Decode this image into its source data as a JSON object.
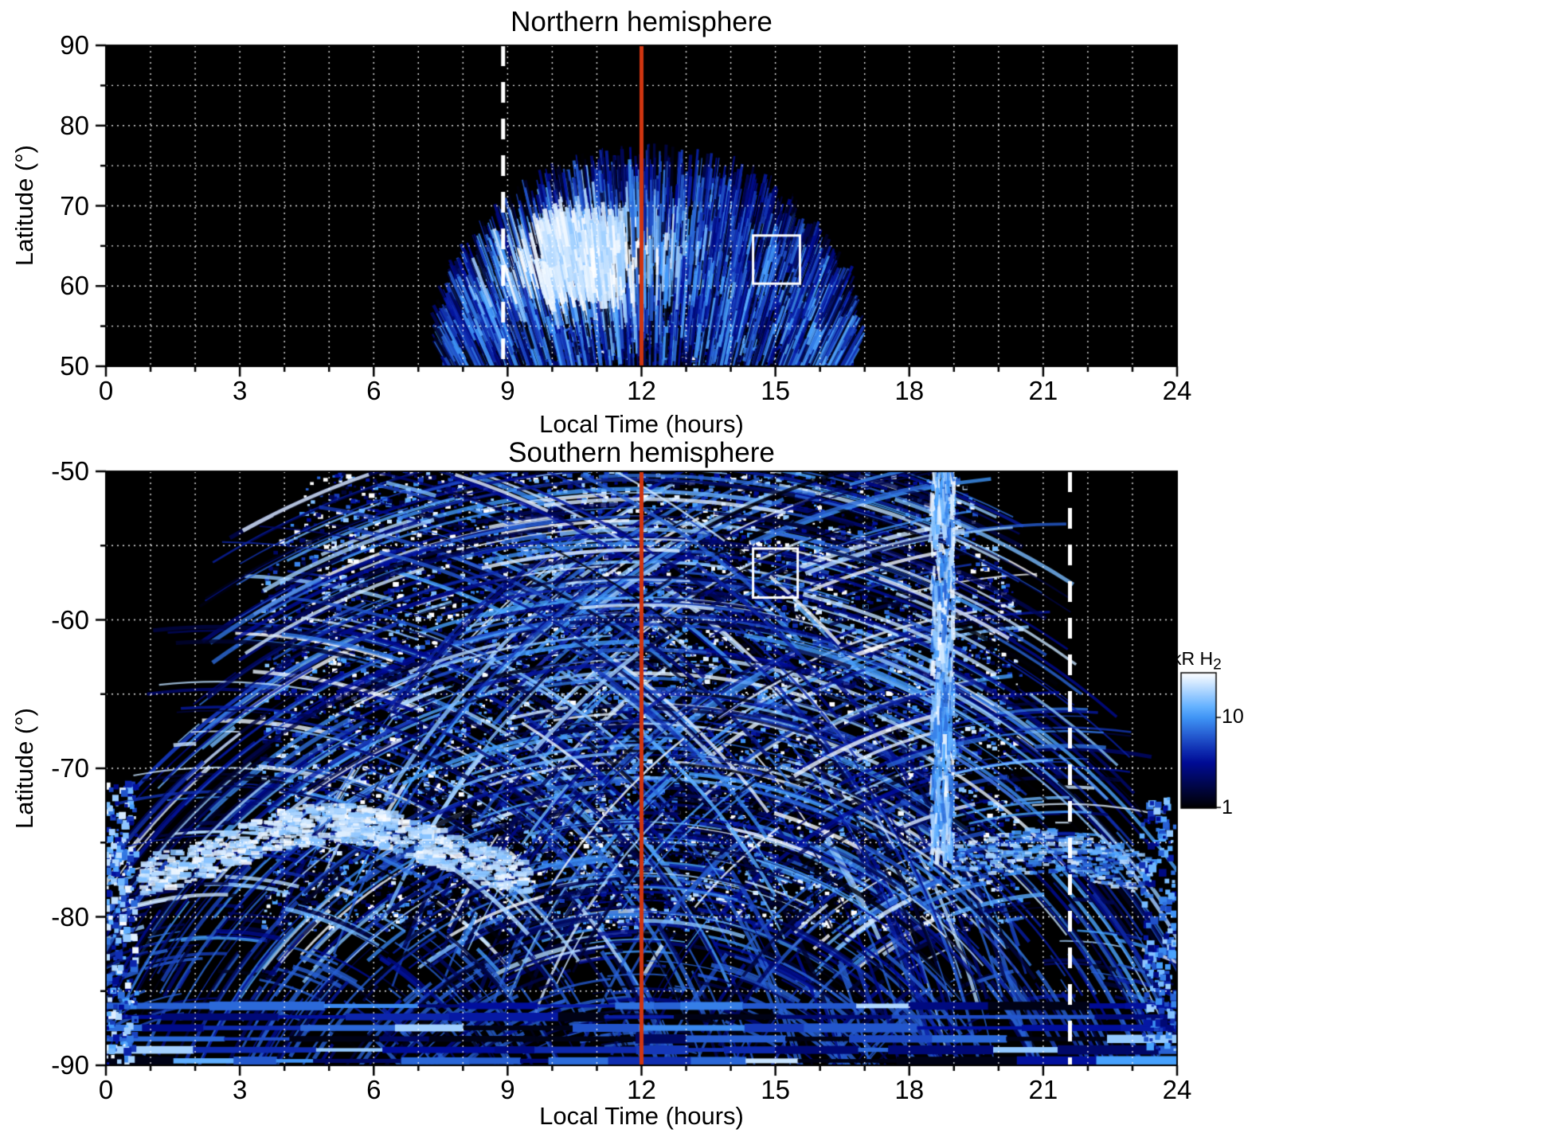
{
  "figure": {
    "background": "#ffffff",
    "panels_count": 2
  },
  "chart_data": [
    {
      "type": "heatmap",
      "title": "Northern hemisphere",
      "xlabel": "Local Time (hours)",
      "ylabel": "Latitude (°)",
      "xlim": [
        0,
        24
      ],
      "ylim": [
        50,
        90
      ],
      "xticks": [
        0,
        3,
        6,
        9,
        12,
        15,
        18,
        21,
        24
      ],
      "yticks": [
        90,
        80,
        70,
        60,
        50
      ],
      "x_minor_step_hours": 1,
      "y_minor_step_deg": 5,
      "grid": {
        "show": true,
        "style": "dotted",
        "color": "#ffffff",
        "x_step_hours": 1,
        "y_step_deg": 5
      },
      "background": "#000000",
      "annotations": {
        "noon_line": {
          "type": "vline",
          "x_hours": 12,
          "color": "#d03510",
          "style": "solid"
        },
        "dashed_line": {
          "type": "vline",
          "x_hours": 8.9,
          "color": "#ffffff",
          "style": "dashed"
        },
        "roi_box": {
          "type": "rect",
          "x_hours": [
            14.5,
            15.55
          ],
          "lat_deg": [
            60.3,
            66.3
          ],
          "color": "#ffffff"
        }
      },
      "emission": {
        "species": "H2",
        "units": "kR",
        "shape": "dayside emission dome centered on local noon, radial streaks",
        "local_time_extent_hours": [
          7.6,
          16.7
        ],
        "latitude_extent_deg": [
          50,
          73.5
        ],
        "brightest_patch": {
          "local_time_hours": [
            9.8,
            11.6
          ],
          "latitude_deg": [
            59,
            68
          ],
          "value_kR": 30
        },
        "typical_value_kR": 8
      }
    },
    {
      "type": "heatmap",
      "title": "Southern hemisphere",
      "xlabel": "Local Time (hours)",
      "ylabel": "Latitude (°)",
      "xlim": [
        0,
        24
      ],
      "ylim": [
        -90,
        -50
      ],
      "xticks": [
        0,
        3,
        6,
        9,
        12,
        15,
        18,
        21,
        24
      ],
      "yticks": [
        -50,
        -60,
        -70,
        -80,
        -90
      ],
      "x_minor_step_hours": 1,
      "y_minor_step_deg": 5,
      "grid": {
        "show": true,
        "style": "dotted",
        "color": "#ffffff",
        "x_step_hours": 1,
        "y_step_deg": 5
      },
      "background": "#000000",
      "annotations": {
        "noon_line": {
          "type": "vline",
          "x_hours": 12,
          "color": "#d03510",
          "style": "solid"
        },
        "dashed_line": {
          "type": "vline",
          "x_hours": 21.6,
          "color": "#ffffff",
          "style": "dashed"
        },
        "roi_box": {
          "type": "rect",
          "x_hours": [
            14.5,
            15.5
          ],
          "lat_deg": [
            -55.2,
            -58.5
          ],
          "color": "#ffffff"
        }
      },
      "emission": {
        "species": "H2",
        "units": "kR",
        "shape": "widespread speckled emission with concentric arc fans, bright dawn-side band, polar horizontal bands",
        "local_time_extent_hours": [
          0,
          24
        ],
        "latitude_extent_deg": [
          -90,
          -50
        ],
        "bright_dawn_band": {
          "local_time_hours": [
            0.8,
            9.5
          ],
          "latitude_deg": [
            -73.5,
            -78.5
          ],
          "value_kR": 30
        },
        "bright_dusk_streak": {
          "local_time_hours": [
            18.5,
            19.0
          ],
          "latitude_deg": [
            -50,
            -76
          ],
          "value_kR": 25
        },
        "polar_bands_latitude_deg": [
          -86,
          -90
        ],
        "typical_value_kR": 6
      }
    }
  ],
  "colorbar": {
    "label": "kR H",
    "label_subscript": "2",
    "scale": "log",
    "min_kR": 1,
    "max_kR": 31.6,
    "ticks": [
      {
        "value": "10",
        "frac_from_top": 0.33
      },
      {
        "value": "1",
        "frac_from_top": 1.0
      }
    ],
    "gradient_top_color": "#ffffff",
    "gradient_bottom_color": "#000000"
  }
}
